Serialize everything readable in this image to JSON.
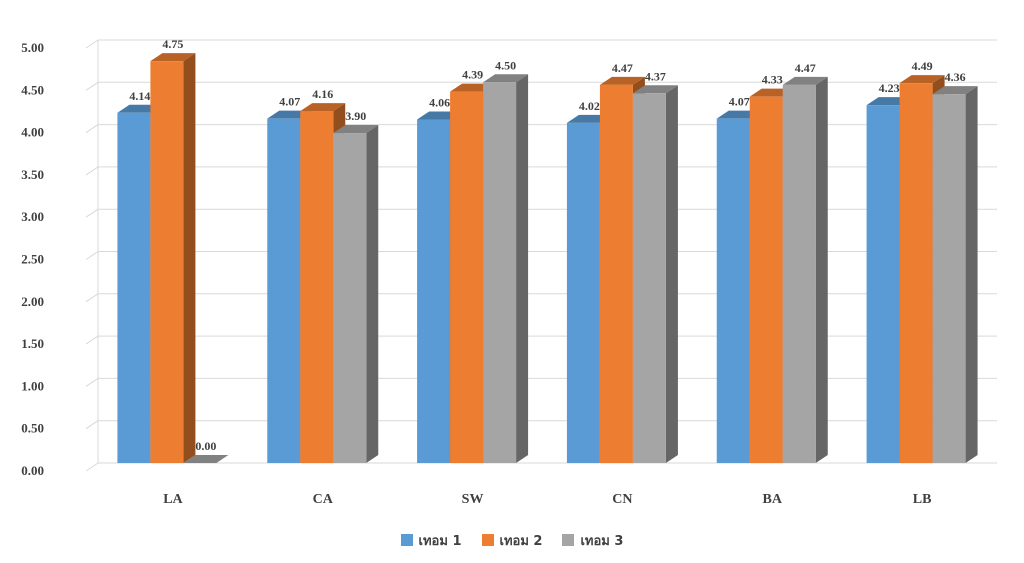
{
  "chart_data": {
    "type": "bar",
    "categories": [
      "LA",
      "CA",
      "SW",
      "CN",
      "BA",
      "LB"
    ],
    "series": [
      {
        "name": "เทอม 1",
        "color": "#5b9bd5",
        "values": [
          4.14,
          4.07,
          4.06,
          4.02,
          4.07,
          4.23
        ]
      },
      {
        "name": "เทอม 2",
        "color": "#ed7d31",
        "values": [
          4.75,
          4.16,
          4.39,
          4.47,
          4.33,
          4.49
        ]
      },
      {
        "name": "เทอม 3",
        "color": "#a5a5a5",
        "values": [
          0.0,
          3.9,
          4.5,
          4.37,
          4.47,
          4.36
        ]
      }
    ],
    "ylim": [
      0,
      5
    ],
    "yticks": [
      "0.00",
      "0.50",
      "1.00",
      "1.50",
      "2.00",
      "2.50",
      "3.00",
      "3.50",
      "4.00",
      "4.50",
      "5.00"
    ],
    "grid": true,
    "legend": "bottom",
    "style": "3d-clustered-column"
  }
}
